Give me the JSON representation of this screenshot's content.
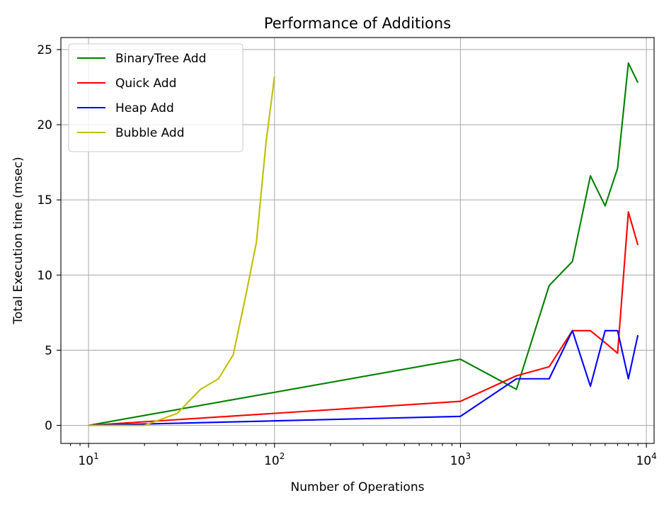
{
  "chart_data": {
    "type": "line",
    "title": "Performance of Additions",
    "xlabel": "Number of Operations",
    "ylabel": "Total Execution time (msec)",
    "x_scale": "log",
    "xlim": [
      7.1,
      11000
    ],
    "ylim": [
      -1.2,
      25.8
    ],
    "x_ticks": [
      {
        "value": 10,
        "base": "10",
        "exp": "1"
      },
      {
        "value": 100,
        "base": "10",
        "exp": "2"
      },
      {
        "value": 1000,
        "base": "10",
        "exp": "3"
      },
      {
        "value": 10000,
        "base": "10",
        "exp": "4"
      }
    ],
    "y_ticks": [
      0,
      5,
      10,
      15,
      20,
      25
    ],
    "grid": true,
    "legend_position": "upper-left",
    "series": [
      {
        "name": "BinaryTree Add",
        "color": "#008000",
        "x": [
          10,
          1000,
          2000,
          3000,
          4000,
          5000,
          6000,
          7000,
          8000,
          9000
        ],
        "y": [
          0.0,
          4.4,
          2.4,
          9.3,
          10.9,
          16.6,
          14.6,
          17.1,
          24.1,
          22.8
        ]
      },
      {
        "name": "Quick Add",
        "color": "#ff0000",
        "x": [
          10,
          1000,
          2000,
          3000,
          4000,
          5000,
          6000,
          7000,
          8000,
          9000
        ],
        "y": [
          0.0,
          1.6,
          3.3,
          3.9,
          6.3,
          6.3,
          5.5,
          4.8,
          14.2,
          12.0
        ]
      },
      {
        "name": "Heap Add",
        "color": "#0000ff",
        "x": [
          10,
          1000,
          2000,
          3000,
          4000,
          5000,
          6000,
          7000,
          8000,
          9000
        ],
        "y": [
          0.0,
          0.6,
          3.1,
          3.1,
          6.3,
          2.6,
          6.3,
          6.3,
          3.1,
          6.0
        ]
      },
      {
        "name": "Bubble Add",
        "color": "#bfbf00",
        "x": [
          10,
          20,
          30,
          40,
          50,
          60,
          70,
          80,
          90,
          100
        ],
        "y": [
          0.0,
          0.0,
          0.8,
          2.4,
          3.1,
          4.7,
          8.6,
          12.2,
          18.8,
          23.2
        ]
      }
    ]
  }
}
